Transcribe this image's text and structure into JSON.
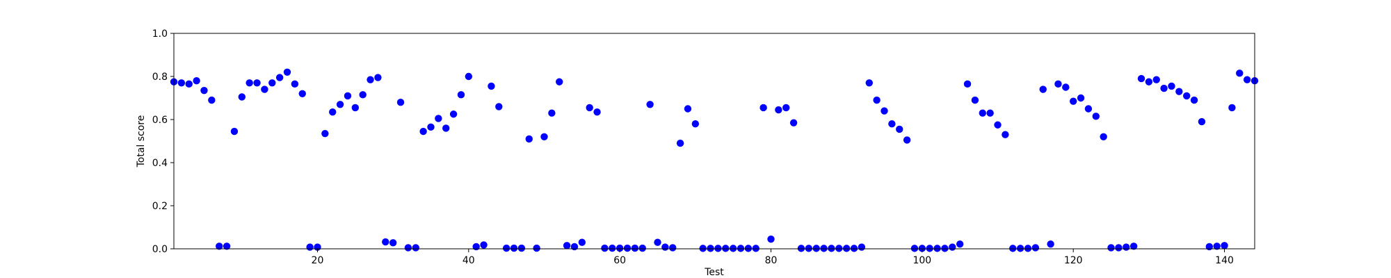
{
  "chart_data": {
    "type": "scatter",
    "title": "",
    "xlabel": "Test",
    "ylabel": "Total score",
    "xlim": [
      1,
      144
    ],
    "ylim": [
      0.0,
      1.0
    ],
    "xticks": [
      20,
      40,
      60,
      80,
      100,
      120,
      140
    ],
    "yticks": [
      0.0,
      0.2,
      0.4,
      0.6,
      0.8,
      1.0
    ],
    "xtick_labels": [
      "20",
      "40",
      "60",
      "80",
      "100",
      "120",
      "140"
    ],
    "ytick_labels": [
      "0.0",
      "0.2",
      "0.4",
      "0.6",
      "0.8",
      "1.0"
    ],
    "grid": false,
    "marker_color": "#0000ff",
    "x": [
      1,
      2,
      3,
      4,
      5,
      6,
      7,
      8,
      9,
      10,
      11,
      12,
      13,
      14,
      15,
      16,
      17,
      18,
      19,
      20,
      21,
      22,
      23,
      24,
      25,
      26,
      27,
      28,
      29,
      30,
      31,
      32,
      33,
      34,
      35,
      36,
      37,
      38,
      39,
      40,
      41,
      42,
      43,
      44,
      45,
      46,
      47,
      48,
      49,
      50,
      51,
      52,
      53,
      54,
      55,
      56,
      57,
      58,
      59,
      60,
      61,
      62,
      63,
      64,
      65,
      66,
      67,
      68,
      69,
      70,
      71,
      72,
      73,
      74,
      75,
      76,
      77,
      78,
      79,
      80,
      81,
      82,
      83,
      84,
      85,
      86,
      87,
      88,
      89,
      90,
      91,
      92,
      93,
      94,
      95,
      96,
      97,
      98,
      99,
      100,
      101,
      102,
      103,
      104,
      105,
      106,
      107,
      108,
      109,
      110,
      111,
      112,
      113,
      114,
      115,
      116,
      117,
      118,
      119,
      120,
      121,
      122,
      123,
      124,
      125,
      126,
      127,
      128,
      129,
      130,
      131,
      132,
      133,
      134,
      135,
      136,
      137,
      138,
      139,
      140,
      141,
      142,
      143,
      144
    ],
    "y": [
      0.775,
      0.77,
      0.765,
      0.78,
      0.735,
      0.69,
      0.012,
      0.012,
      0.545,
      0.705,
      0.77,
      0.77,
      0.74,
      0.77,
      0.795,
      0.82,
      0.765,
      0.72,
      0.008,
      0.008,
      0.535,
      0.635,
      0.67,
      0.71,
      0.655,
      0.715,
      0.785,
      0.795,
      0.032,
      0.028,
      0.68,
      0.005,
      0.005,
      0.545,
      0.565,
      0.605,
      0.56,
      0.625,
      0.715,
      0.8,
      0.01,
      0.018,
      0.755,
      0.66,
      0.003,
      0.003,
      0.003,
      0.51,
      0.003,
      0.52,
      0.63,
      0.775,
      0.015,
      0.01,
      0.03,
      0.655,
      0.635,
      0.003,
      0.003,
      0.003,
      0.003,
      0.003,
      0.003,
      0.67,
      0.03,
      0.008,
      0.005,
      0.49,
      0.65,
      0.58,
      0.002,
      0.002,
      0.002,
      0.002,
      0.002,
      0.002,
      0.002,
      0.002,
      0.655,
      0.045,
      0.645,
      0.655,
      0.585,
      0.002,
      0.002,
      0.002,
      0.002,
      0.002,
      0.002,
      0.002,
      0.002,
      0.008,
      0.77,
      0.69,
      0.64,
      0.58,
      0.555,
      0.505,
      0.002,
      0.002,
      0.002,
      0.002,
      0.002,
      0.008,
      0.022,
      0.765,
      0.69,
      0.63,
      0.63,
      0.575,
      0.53,
      0.002,
      0.002,
      0.002,
      0.005,
      0.74,
      0.022,
      0.765,
      0.75,
      0.685,
      0.7,
      0.65,
      0.615,
      0.52,
      0.005,
      0.005,
      0.008,
      0.012,
      0.79,
      0.775,
      0.785,
      0.745,
      0.755,
      0.73,
      0.71,
      0.69,
      0.59,
      0.01,
      0.012,
      0.015,
      0.655,
      0.815,
      0.785,
      0.78
    ]
  }
}
